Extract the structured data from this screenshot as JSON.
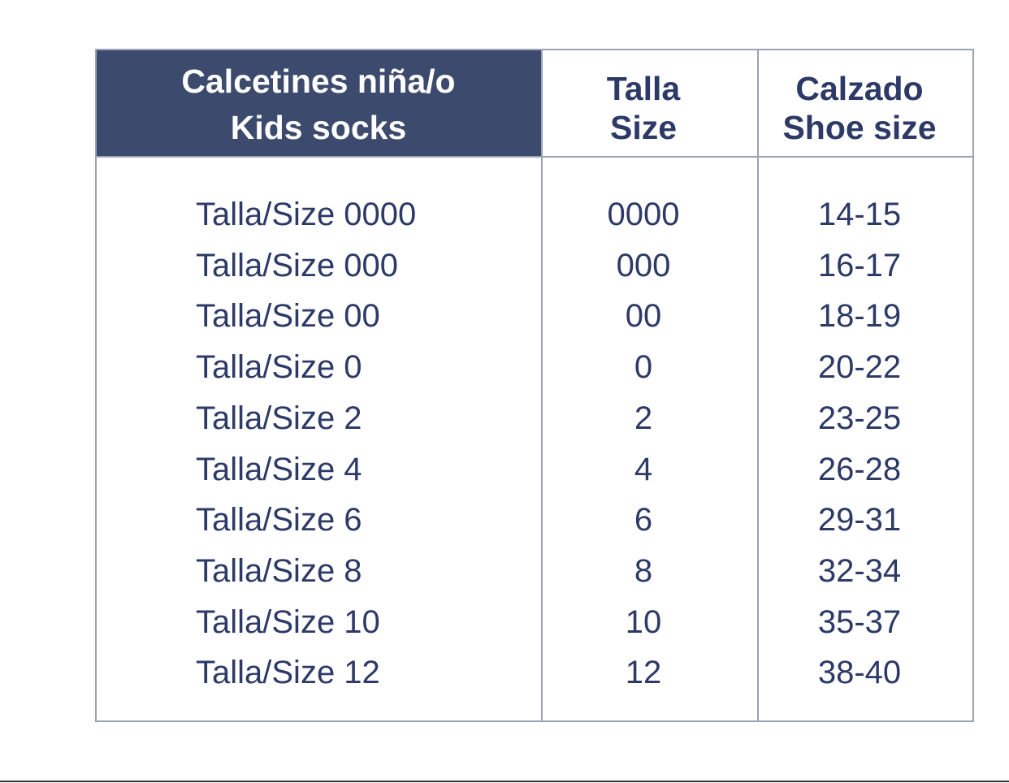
{
  "table": {
    "header": [
      [
        "Calcetines niña/o",
        "Kids socks"
      ],
      [
        "Talla",
        "Size"
      ],
      [
        "Calzado",
        "Shoe size"
      ]
    ],
    "rows": [
      [
        "Talla/Size 0000",
        "0000",
        "14-15"
      ],
      [
        "Talla/Size 000",
        "000",
        "16-17"
      ],
      [
        "Talla/Size 00",
        "00",
        "18-19"
      ],
      [
        "Talla/Size 0",
        "0",
        "20-22"
      ],
      [
        "Talla/Size 2",
        "2",
        "23-25"
      ],
      [
        "Talla/Size 4",
        "4",
        "26-28"
      ],
      [
        "Talla/Size 6",
        "6",
        "29-31"
      ],
      [
        "Talla/Size 8",
        "8",
        "32-34"
      ],
      [
        "Talla/Size 10",
        "10",
        "35-37"
      ],
      [
        "Talla/Size 12",
        "12",
        "38-40"
      ]
    ]
  }
}
